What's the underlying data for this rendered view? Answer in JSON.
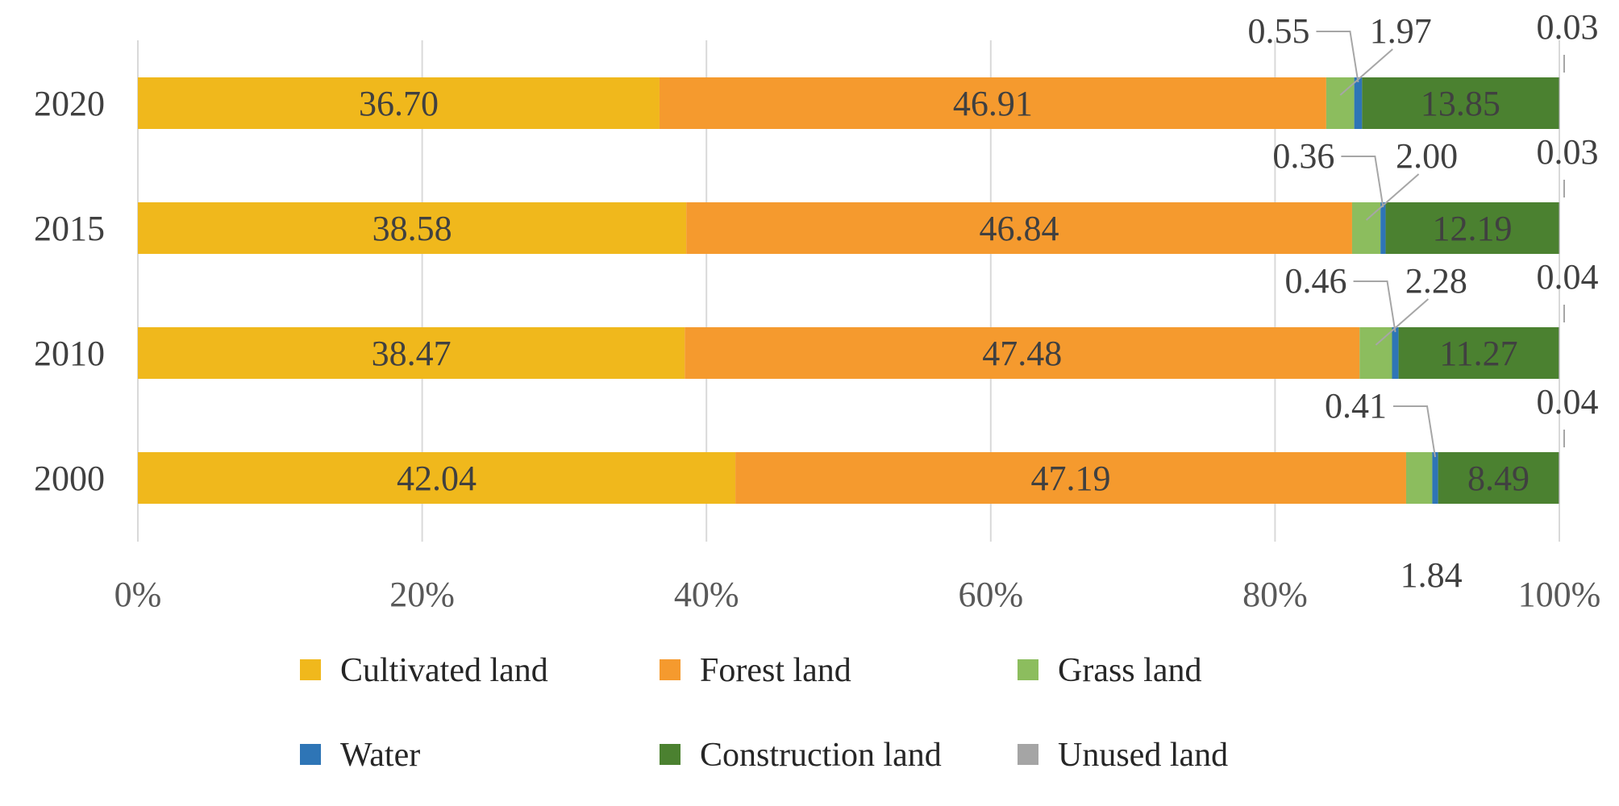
{
  "chart_data": {
    "type": "bar",
    "orientation": "horizontal",
    "stacking": "percent",
    "categories": [
      "2020",
      "2015",
      "2010",
      "2000"
    ],
    "series": [
      {
        "name": "Cultivated land",
        "color": "#f0b81c",
        "values": [
          36.7,
          38.58,
          38.47,
          42.04
        ],
        "labels": [
          "36.70",
          "38.58",
          "38.47",
          "42.04"
        ]
      },
      {
        "name": "Forest land",
        "color": "#f59a2e",
        "values": [
          46.91,
          46.84,
          47.48,
          47.19
        ],
        "labels": [
          "46.91",
          "46.84",
          "47.48",
          "47.19"
        ]
      },
      {
        "name": "Grass land",
        "color": "#8cbd5e",
        "values": [
          1.97,
          2.0,
          2.28,
          1.84
        ],
        "labels": [
          "1.97",
          "2.00",
          "2.28",
          "1.84"
        ]
      },
      {
        "name": "Water",
        "color": "#2e75b6",
        "values": [
          0.55,
          0.36,
          0.46,
          0.41
        ],
        "labels": [
          "0.55",
          "0.36",
          "0.46",
          "0.41"
        ]
      },
      {
        "name": "Construction land",
        "color": "#4b8130",
        "values": [
          13.85,
          12.19,
          11.27,
          8.49
        ],
        "labels": [
          "13.85",
          "12.19",
          "11.27",
          "8.49"
        ]
      },
      {
        "name": "Unused land",
        "color": "#a5a5a5",
        "values": [
          0.03,
          0.03,
          0.04,
          0.04
        ],
        "labels": [
          "0.03",
          "0.03",
          "0.04",
          "0.04"
        ]
      }
    ],
    "x_ticks": [
      "0%",
      "20%",
      "40%",
      "60%",
      "80%",
      "100%"
    ],
    "xlim": [
      0,
      100
    ],
    "grid": true,
    "legend_position": "bottom",
    "title": "",
    "xlabel": "",
    "ylabel": ""
  }
}
